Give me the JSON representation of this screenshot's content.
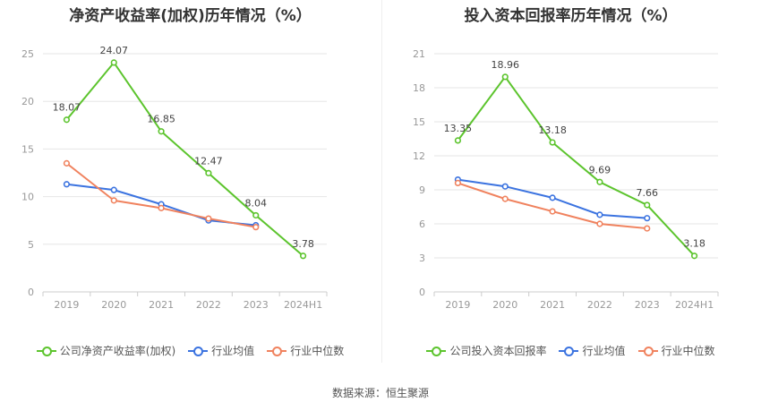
{
  "source": "数据来源：恒生聚源",
  "chart_data": [
    {
      "type": "line",
      "title": "净资产收益率(加权)历年情况（%）",
      "categories": [
        "2019",
        "2020",
        "2021",
        "2022",
        "2023",
        "2024H1"
      ],
      "ylim": [
        0,
        25
      ],
      "yticks": [
        0,
        5,
        10,
        15,
        20,
        25
      ],
      "grid": true,
      "legend_position": "bottom",
      "series": [
        {
          "name": "公司净资产收益率(加权)",
          "color": "#5cc42d",
          "values": [
            18.07,
            24.07,
            16.85,
            12.47,
            8.04,
            3.78
          ],
          "labels": [
            "18.07",
            "24.07",
            "16.85",
            "12.47",
            "8.04",
            "3.78"
          ]
        },
        {
          "name": "行业均值",
          "color": "#3b73e0",
          "values": [
            11.3,
            10.7,
            9.2,
            7.5,
            7.0,
            null
          ]
        },
        {
          "name": "行业中位数",
          "color": "#f0825e",
          "values": [
            13.5,
            9.6,
            8.8,
            7.7,
            6.8,
            null
          ]
        }
      ]
    },
    {
      "type": "line",
      "title": "投入资本回报率历年情况（%）",
      "categories": [
        "2019",
        "2020",
        "2021",
        "2022",
        "2023",
        "2024H1"
      ],
      "ylim": [
        0,
        21
      ],
      "yticks": [
        0,
        3,
        6,
        9,
        12,
        15,
        18,
        21
      ],
      "grid": true,
      "legend_position": "bottom",
      "series": [
        {
          "name": "公司投入资本回报率",
          "color": "#5cc42d",
          "values": [
            13.35,
            18.96,
            13.18,
            9.69,
            7.66,
            3.18
          ],
          "labels": [
            "13.35",
            "18.96",
            "13.18",
            "9.69",
            "7.66",
            "3.18"
          ]
        },
        {
          "name": "行业均值",
          "color": "#3b73e0",
          "values": [
            9.9,
            9.3,
            8.3,
            6.8,
            6.5,
            null
          ]
        },
        {
          "name": "行业中位数",
          "color": "#f0825e",
          "values": [
            9.6,
            8.2,
            7.1,
            6.0,
            5.6,
            null
          ]
        }
      ]
    }
  ]
}
